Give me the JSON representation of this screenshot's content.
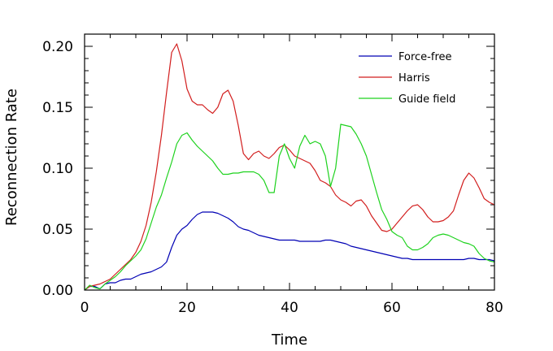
{
  "chart_data": {
    "type": "line",
    "title": "",
    "xlabel": "Time",
    "ylabel": "Reconnection Rate",
    "xlim": [
      0,
      80
    ],
    "ylim": [
      0,
      0.21
    ],
    "x_ticks": [
      0,
      20,
      40,
      60,
      80
    ],
    "x_tick_labels": [
      "0",
      "20",
      "40",
      "60",
      "80"
    ],
    "y_ticks": [
      0,
      0.05,
      0.1,
      0.15,
      0.2
    ],
    "y_tick_labels": [
      "0.00",
      "0.05",
      "0.10",
      "0.15",
      "0.20"
    ],
    "grid": false,
    "legend_position": "top-right",
    "series": [
      {
        "name": "Force-free",
        "color": "#0000b4",
        "points": [
          [
            0,
            0
          ],
          [
            1,
            0.003
          ],
          [
            2,
            0.003
          ],
          [
            3,
            0.001
          ],
          [
            4,
            0.005
          ],
          [
            5,
            0.006
          ],
          [
            6,
            0.006
          ],
          [
            7,
            0.008
          ],
          [
            8,
            0.009
          ],
          [
            9,
            0.009
          ],
          [
            10,
            0.011
          ],
          [
            11,
            0.013
          ],
          [
            12,
            0.014
          ],
          [
            13,
            0.015
          ],
          [
            14,
            0.017
          ],
          [
            15,
            0.019
          ],
          [
            16,
            0.023
          ],
          [
            17,
            0.035
          ],
          [
            18,
            0.045
          ],
          [
            19,
            0.05
          ],
          [
            20,
            0.053
          ],
          [
            21,
            0.058
          ],
          [
            22,
            0.062
          ],
          [
            23,
            0.064
          ],
          [
            24,
            0.064
          ],
          [
            25,
            0.064
          ],
          [
            26,
            0.063
          ],
          [
            27,
            0.061
          ],
          [
            28,
            0.059
          ],
          [
            29,
            0.056
          ],
          [
            30,
            0.052
          ],
          [
            31,
            0.05
          ],
          [
            32,
            0.049
          ],
          [
            33,
            0.047
          ],
          [
            34,
            0.045
          ],
          [
            35,
            0.044
          ],
          [
            36,
            0.043
          ],
          [
            37,
            0.042
          ],
          [
            38,
            0.041
          ],
          [
            39,
            0.041
          ],
          [
            40,
            0.041
          ],
          [
            41,
            0.041
          ],
          [
            42,
            0.04
          ],
          [
            43,
            0.04
          ],
          [
            44,
            0.04
          ],
          [
            45,
            0.04
          ],
          [
            46,
            0.04
          ],
          [
            47,
            0.041
          ],
          [
            48,
            0.041
          ],
          [
            49,
            0.04
          ],
          [
            50,
            0.039
          ],
          [
            51,
            0.038
          ],
          [
            52,
            0.036
          ],
          [
            53,
            0.035
          ],
          [
            54,
            0.034
          ],
          [
            55,
            0.033
          ],
          [
            56,
            0.032
          ],
          [
            57,
            0.031
          ],
          [
            58,
            0.03
          ],
          [
            59,
            0.029
          ],
          [
            60,
            0.028
          ],
          [
            61,
            0.027
          ],
          [
            62,
            0.026
          ],
          [
            63,
            0.026
          ],
          [
            64,
            0.025
          ],
          [
            65,
            0.025
          ],
          [
            66,
            0.025
          ],
          [
            67,
            0.025
          ],
          [
            68,
            0.025
          ],
          [
            69,
            0.025
          ],
          [
            70,
            0.025
          ],
          [
            71,
            0.025
          ],
          [
            72,
            0.025
          ],
          [
            73,
            0.025
          ],
          [
            74,
            0.025
          ],
          [
            75,
            0.026
          ],
          [
            76,
            0.026
          ],
          [
            77,
            0.025
          ],
          [
            78,
            0.025
          ],
          [
            79,
            0.025
          ],
          [
            80,
            0.024
          ]
        ]
      },
      {
        "name": "Harris",
        "color": "#d21e1e",
        "points": [
          [
            0,
            0
          ],
          [
            1,
            0.003
          ],
          [
            2,
            0.004
          ],
          [
            3,
            0.005
          ],
          [
            4,
            0.007
          ],
          [
            5,
            0.009
          ],
          [
            6,
            0.013
          ],
          [
            7,
            0.017
          ],
          [
            8,
            0.021
          ],
          [
            9,
            0.025
          ],
          [
            10,
            0.031
          ],
          [
            11,
            0.04
          ],
          [
            12,
            0.053
          ],
          [
            13,
            0.072
          ],
          [
            14,
            0.097
          ],
          [
            15,
            0.127
          ],
          [
            16,
            0.162
          ],
          [
            17,
            0.195
          ],
          [
            18,
            0.202
          ],
          [
            19,
            0.188
          ],
          [
            20,
            0.165
          ],
          [
            21,
            0.155
          ],
          [
            22,
            0.152
          ],
          [
            23,
            0.152
          ],
          [
            24,
            0.148
          ],
          [
            25,
            0.145
          ],
          [
            26,
            0.15
          ],
          [
            27,
            0.161
          ],
          [
            28,
            0.164
          ],
          [
            29,
            0.155
          ],
          [
            30,
            0.135
          ],
          [
            31,
            0.112
          ],
          [
            32,
            0.107
          ],
          [
            33,
            0.112
          ],
          [
            34,
            0.114
          ],
          [
            35,
            0.11
          ],
          [
            36,
            0.108
          ],
          [
            37,
            0.112
          ],
          [
            38,
            0.117
          ],
          [
            39,
            0.119
          ],
          [
            40,
            0.115
          ],
          [
            41,
            0.11
          ],
          [
            42,
            0.108
          ],
          [
            43,
            0.106
          ],
          [
            44,
            0.104
          ],
          [
            45,
            0.098
          ],
          [
            46,
            0.09
          ],
          [
            47,
            0.088
          ],
          [
            48,
            0.085
          ],
          [
            49,
            0.078
          ],
          [
            50,
            0.074
          ],
          [
            51,
            0.072
          ],
          [
            52,
            0.069
          ],
          [
            53,
            0.073
          ],
          [
            54,
            0.074
          ],
          [
            55,
            0.069
          ],
          [
            56,
            0.061
          ],
          [
            57,
            0.055
          ],
          [
            58,
            0.049
          ],
          [
            59,
            0.048
          ],
          [
            60,
            0.05
          ],
          [
            61,
            0.055
          ],
          [
            62,
            0.06
          ],
          [
            63,
            0.065
          ],
          [
            64,
            0.069
          ],
          [
            65,
            0.07
          ],
          [
            66,
            0.066
          ],
          [
            67,
            0.06
          ],
          [
            68,
            0.056
          ],
          [
            69,
            0.056
          ],
          [
            70,
            0.057
          ],
          [
            71,
            0.06
          ],
          [
            72,
            0.065
          ],
          [
            73,
            0.078
          ],
          [
            74,
            0.09
          ],
          [
            75,
            0.096
          ],
          [
            76,
            0.092
          ],
          [
            77,
            0.084
          ],
          [
            78,
            0.075
          ],
          [
            79,
            0.072
          ],
          [
            80,
            0.07
          ]
        ]
      },
      {
        "name": "Guide field",
        "color": "#1ed21e",
        "points": [
          [
            0,
            0
          ],
          [
            1,
            0.004
          ],
          [
            2,
            0.002
          ],
          [
            3,
            0.001
          ],
          [
            4,
            0.005
          ],
          [
            5,
            0.008
          ],
          [
            6,
            0.011
          ],
          [
            7,
            0.015
          ],
          [
            8,
            0.02
          ],
          [
            9,
            0.024
          ],
          [
            10,
            0.028
          ],
          [
            11,
            0.033
          ],
          [
            12,
            0.042
          ],
          [
            13,
            0.055
          ],
          [
            14,
            0.068
          ],
          [
            15,
            0.078
          ],
          [
            16,
            0.092
          ],
          [
            17,
            0.105
          ],
          [
            18,
            0.12
          ],
          [
            19,
            0.127
          ],
          [
            20,
            0.129
          ],
          [
            21,
            0.123
          ],
          [
            22,
            0.118
          ],
          [
            23,
            0.114
          ],
          [
            24,
            0.11
          ],
          [
            25,
            0.106
          ],
          [
            26,
            0.1
          ],
          [
            27,
            0.095
          ],
          [
            28,
            0.095
          ],
          [
            29,
            0.096
          ],
          [
            30,
            0.096
          ],
          [
            31,
            0.097
          ],
          [
            32,
            0.097
          ],
          [
            33,
            0.097
          ],
          [
            34,
            0.095
          ],
          [
            35,
            0.09
          ],
          [
            36,
            0.08
          ],
          [
            37,
            0.08
          ],
          [
            38,
            0.11
          ],
          [
            39,
            0.12
          ],
          [
            40,
            0.108
          ],
          [
            41,
            0.1
          ],
          [
            42,
            0.118
          ],
          [
            43,
            0.127
          ],
          [
            44,
            0.12
          ],
          [
            45,
            0.122
          ],
          [
            46,
            0.12
          ],
          [
            47,
            0.11
          ],
          [
            48,
            0.085
          ],
          [
            49,
            0.1
          ],
          [
            50,
            0.136
          ],
          [
            51,
            0.135
          ],
          [
            52,
            0.134
          ],
          [
            53,
            0.128
          ],
          [
            54,
            0.12
          ],
          [
            55,
            0.11
          ],
          [
            56,
            0.095
          ],
          [
            57,
            0.08
          ],
          [
            58,
            0.066
          ],
          [
            59,
            0.058
          ],
          [
            60,
            0.048
          ],
          [
            61,
            0.045
          ],
          [
            62,
            0.043
          ],
          [
            63,
            0.036
          ],
          [
            64,
            0.033
          ],
          [
            65,
            0.033
          ],
          [
            66,
            0.035
          ],
          [
            67,
            0.038
          ],
          [
            68,
            0.043
          ],
          [
            69,
            0.045
          ],
          [
            70,
            0.046
          ],
          [
            71,
            0.045
          ],
          [
            72,
            0.043
          ],
          [
            73,
            0.041
          ],
          [
            74,
            0.039
          ],
          [
            75,
            0.038
          ],
          [
            76,
            0.036
          ],
          [
            77,
            0.03
          ],
          [
            78,
            0.026
          ],
          [
            79,
            0.024
          ],
          [
            80,
            0.023
          ]
        ]
      }
    ]
  }
}
